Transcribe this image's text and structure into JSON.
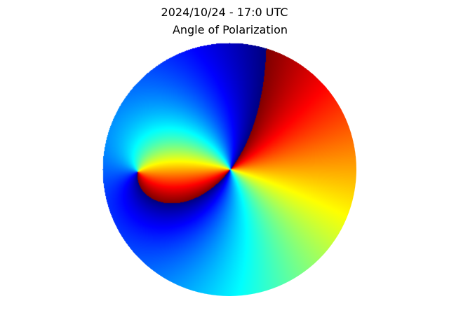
{
  "figure": {
    "title_line1": "2024/10/24 - 17:0 UTC",
    "title_line2": "Angle of Polarization"
  },
  "chart_data": {
    "type": "heatmap",
    "title": "2024/10/24 - 17:0 UTC",
    "subtitle": "Angle of Polarization",
    "xlabel": "",
    "ylabel": "",
    "projection": "polar sky dome (all-sky disk)",
    "colormap": "jet",
    "axes_visible": false,
    "grid": false,
    "legend": "none",
    "singular_points": [
      {
        "name": "",
        "azimuth_deg": 270,
        "zenith_deg": 43
      },
      {
        "name": "",
        "azimuth_deg": 90,
        "zenith_deg": 1
      }
    ],
    "discontinuity": "horizontal line through the disk center (angle wraps from max to min)"
  }
}
